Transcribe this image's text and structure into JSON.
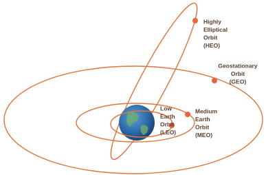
{
  "orbits": [
    {
      "lines": [
        "Highly",
        "Elliptical",
        "Orbit",
        "(HEO)"
      ]
    },
    {
      "lines": [
        "Geostationary",
        "Orbit",
        "(GEO)"
      ]
    },
    {
      "lines": [
        "Low",
        "Earth",
        "Orbit",
        "(LEO)"
      ]
    },
    {
      "lines": [
        "Medium",
        "Earth",
        "Orbit",
        "(MEO)"
      ]
    }
  ]
}
